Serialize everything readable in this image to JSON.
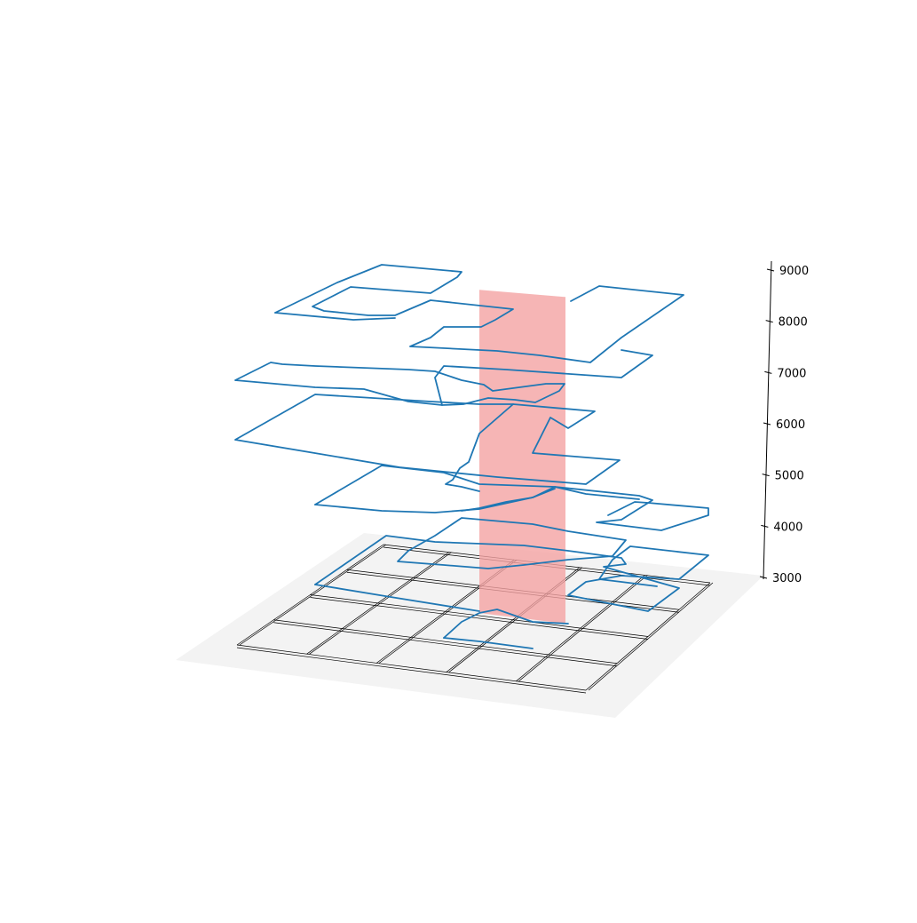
{
  "chart_data": {
    "type": "line",
    "title": "",
    "xlabel": "",
    "ylabel": "",
    "zlabel": "",
    "projection": "3d",
    "z_axis": {
      "ticks": [
        3000,
        4000,
        5000,
        6000,
        7000,
        8000,
        9000
      ],
      "tick_labels": [
        "3000",
        "4000",
        "5000",
        "6000",
        "7000",
        "8000",
        "9000"
      ],
      "zlim": [
        3000,
        9000
      ],
      "side": "right"
    },
    "floor": {
      "grid_rows": 4,
      "grid_cols": 5,
      "floor_color": "#f3f3f3",
      "grid_color": "#000000"
    },
    "highlight_plane": {
      "color": "#f4a3a3",
      "opacity": 0.8,
      "z_range": [
        3000,
        8700
      ]
    },
    "series": [
      {
        "color": "#1f77b4",
        "paths": [
          [
            [
              310,
              352
            ],
            [
              380,
              318
            ],
            [
              430,
              298
            ],
            [
              520,
              306
            ],
            [
              515,
              312
            ],
            [
              485,
              330
            ],
            [
              395,
              323
            ],
            [
              352,
              345
            ],
            [
              365,
              350
            ],
            [
              415,
              355
            ],
            [
              445,
              355
            ],
            [
              485,
              338
            ],
            [
              578,
              348
            ],
            [
              558,
              360
            ],
            [
              542,
              368
            ],
            [
              500,
              368
            ],
            [
              485,
              380
            ],
            [
              462,
              390
            ],
            [
              560,
              395
            ],
            [
              608,
              400
            ],
            [
              665,
              408
            ],
            [
              700,
              380
            ],
            [
              770,
              332
            ],
            [
              675,
              322
            ],
            [
              643,
              339
            ]
          ],
          [
            [
              310,
              352
            ],
            [
              398,
              360
            ],
            [
              445,
              358
            ]
          ],
          [
            [
              265,
              428
            ],
            [
              305,
              408
            ],
            [
              318,
              410
            ],
            [
              355,
              412
            ],
            [
              460,
              416
            ],
            [
              490,
              418
            ],
            [
              520,
              428
            ],
            [
              545,
              433
            ],
            [
              555,
              440
            ],
            [
              615,
              432
            ],
            [
              636,
              432
            ],
            [
              630,
              440
            ],
            [
              603,
              453
            ],
            [
              580,
              450
            ],
            [
              550,
              448
            ],
            [
              522,
              455
            ],
            [
              498,
              456
            ],
            [
              460,
              452
            ],
            [
              410,
              438
            ],
            [
              355,
              436
            ],
            [
              265,
              428
            ]
          ],
          [
            [
              498,
              456
            ],
            [
              490,
              425
            ],
            [
              500,
              412
            ],
            [
              570,
              416
            ],
            [
              700,
              425
            ],
            [
              735,
              400
            ],
            [
              700,
              394
            ]
          ],
          [
            [
              265,
              495
            ],
            [
              355,
              444
            ],
            [
              485,
              452
            ],
            [
              540,
              455
            ],
            [
              578,
              455
            ],
            [
              670,
              463
            ],
            [
              640,
              482
            ],
            [
              620,
              470
            ],
            [
              600,
              510
            ],
            [
              698,
              518
            ],
            [
              660,
              545
            ],
            [
              560,
              537
            ],
            [
              450,
              526
            ],
            [
              265,
              495
            ]
          ],
          [
            [
              578,
              455
            ],
            [
              540,
              488
            ],
            [
              528,
              520
            ],
            [
              518,
              527
            ],
            [
              510,
              540
            ],
            [
              502,
              545
            ],
            [
              520,
              548
            ],
            [
              540,
              553
            ]
          ],
          [
            [
              355,
              568
            ],
            [
              430,
              524
            ],
            [
              500,
              532
            ],
            [
              540,
              545
            ],
            [
              625,
              548
            ],
            [
              720,
              558
            ],
            [
              735,
              563
            ],
            [
              700,
              585
            ],
            [
              672,
              588
            ],
            [
              745,
              597
            ],
            [
              798,
              580
            ],
            [
              798,
              572
            ],
            [
              730,
              566
            ],
            [
              715,
              565
            ],
            [
              685,
              580
            ]
          ],
          [
            [
              355,
              568
            ],
            [
              430,
              575
            ],
            [
              490,
              577
            ],
            [
              540,
              573
            ],
            [
              600,
              560
            ],
            [
              625,
              550
            ]
          ],
          [
            [
              520,
              575
            ],
            [
              540,
              572
            ],
            [
              570,
              565
            ],
            [
              600,
              560
            ],
            [
              625,
              548
            ],
            [
              660,
              556
            ],
            [
              720,
              562
            ]
          ],
          [
            [
              490,
              603
            ],
            [
              520,
              583
            ],
            [
              600,
              590
            ],
            [
              640,
              598
            ],
            [
              705,
              608
            ],
            [
              690,
              626
            ],
            [
              640,
              630
            ],
            [
              590,
              636
            ],
            [
              550,
              640
            ],
            [
              500,
              636
            ],
            [
              448,
              632
            ],
            [
              460,
              620
            ],
            [
              490,
              603
            ]
          ],
          [
            [
              355,
              658
            ],
            [
              435,
              603
            ],
            [
              490,
              610
            ],
            [
              540,
              612
            ],
            [
              590,
              614
            ],
            [
              640,
              620
            ],
            [
              700,
              628
            ],
            [
              705,
              635
            ],
            [
              680,
              638
            ],
            [
              765,
              662
            ],
            [
              730,
              688
            ],
            [
              700,
              682
            ],
            [
              640,
              670
            ],
            [
              660,
              655
            ],
            [
              700,
              648
            ],
            [
              765,
              652
            ],
            [
              798,
              625
            ],
            [
              710,
              615
            ],
            [
              690,
              630
            ],
            [
              675,
              652
            ],
            [
              700,
              655
            ],
            [
              740,
              660
            ]
          ],
          [
            [
              355,
              658
            ],
            [
              440,
              672
            ],
            [
              540,
              688
            ]
          ],
          [
            [
              500,
              718
            ],
            [
              520,
              700
            ],
            [
              540,
              690
            ],
            [
              560,
              686
            ],
            [
              600,
              700
            ],
            [
              640,
              702
            ]
          ],
          [
            [
              500,
              718
            ],
            [
              540,
              722
            ],
            [
              600,
              730
            ]
          ]
        ]
      }
    ]
  }
}
